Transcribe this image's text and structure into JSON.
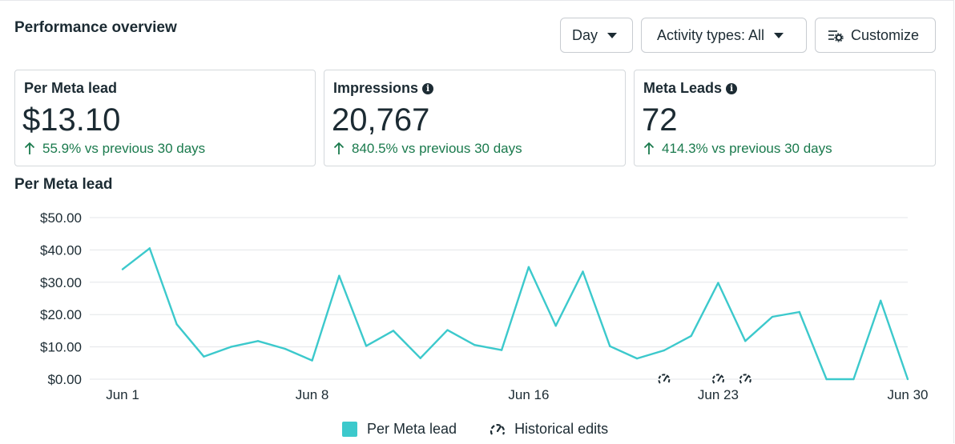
{
  "header": {
    "title": "Performance overview"
  },
  "controls": {
    "day_label": "Day",
    "activity_label": "Activity types: All",
    "customize_label": "Customize"
  },
  "cards": [
    {
      "label": "Per Meta lead",
      "value": "$13.10",
      "delta": "55.9% vs previous 30 days",
      "info": false
    },
    {
      "label": "Impressions",
      "value": "20,767",
      "delta": "840.5% vs previous 30 days",
      "info": true
    },
    {
      "label": "Meta Leads",
      "value": "72",
      "delta": "414.3% vs previous 30 days",
      "info": true
    }
  ],
  "colors": {
    "line": "#3cc9cc",
    "positive": "#1a7a4d",
    "grid": "#e3e5e8"
  },
  "chart_data": {
    "type": "line",
    "title": "Per Meta lead",
    "x": [
      "Jun 1",
      "Jun 2",
      "Jun 3",
      "Jun 4",
      "Jun 5",
      "Jun 6",
      "Jun 7",
      "Jun 8",
      "Jun 9",
      "Jun 10",
      "Jun 11",
      "Jun 12",
      "Jun 13",
      "Jun 14",
      "Jun 15",
      "Jun 16",
      "Jun 17",
      "Jun 18",
      "Jun 19",
      "Jun 20",
      "Jun 21",
      "Jun 22",
      "Jun 23",
      "Jun 24",
      "Jun 25",
      "Jun 26",
      "Jun 27",
      "Jun 28",
      "Jun 29",
      "Jun 30"
    ],
    "xticks": [
      "Jun 1",
      "Jun 8",
      "Jun 16",
      "Jun 23",
      "Jun 30"
    ],
    "yticks": [
      "$0.00",
      "$10.00",
      "$20.00",
      "$30.00",
      "$40.00",
      "$50.00"
    ],
    "ylim": [
      0,
      50
    ],
    "series": [
      {
        "name": "Per Meta lead",
        "values": [
          34,
          40.5,
          17,
          7,
          10,
          11.8,
          9.4,
          5.8,
          32,
          10.3,
          15,
          6.5,
          15.2,
          10.6,
          9,
          34.7,
          16.5,
          33.3,
          10.2,
          6.4,
          8.9,
          13.4,
          29.8,
          11.8,
          19.3,
          20.8,
          0,
          0,
          24.3,
          0
        ]
      }
    ],
    "historical_edits": [
      "Jun 21",
      "Jun 23",
      "Jun 24"
    ],
    "legend": [
      "Per Meta lead",
      "Historical edits"
    ],
    "legend_position": "bottom",
    "grid": true
  }
}
